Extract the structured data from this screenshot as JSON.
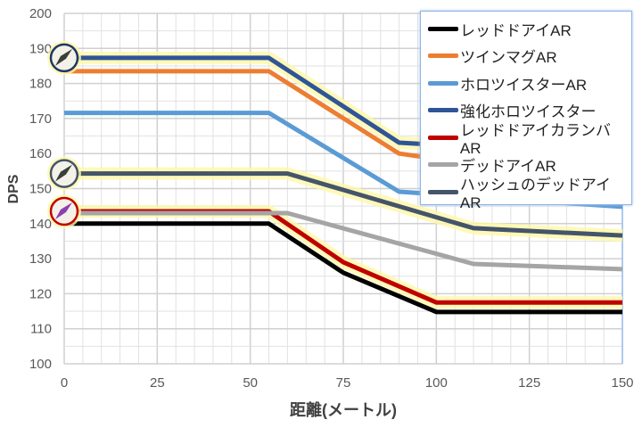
{
  "chart_data": {
    "type": "line",
    "title": "",
    "xlabel": "距離(メートル)",
    "ylabel": "DPS",
    "xlim": [
      0,
      150
    ],
    "ylim": [
      100,
      200
    ],
    "xticks": [
      0,
      25,
      50,
      75,
      100,
      125,
      150
    ],
    "yticks": [
      100,
      110,
      120,
      130,
      140,
      150,
      160,
      170,
      180,
      190,
      200
    ],
    "grid": true,
    "legend_position": "top-right",
    "series": [
      {
        "name": "レッドドアイAR",
        "color": "#000000",
        "glow": false,
        "points": [
          [
            0,
            140
          ],
          [
            55,
            140
          ],
          [
            75,
            126
          ],
          [
            100,
            114.8
          ],
          [
            150,
            114.8
          ]
        ]
      },
      {
        "name": "ツインマグAR",
        "color": "#ed7d31",
        "glow": false,
        "points": [
          [
            0,
            183.5
          ],
          [
            55,
            183.5
          ],
          [
            90,
            160
          ],
          [
            100,
            158.5
          ],
          [
            150,
            155
          ]
        ]
      },
      {
        "name": "ホロツイスターAR",
        "color": "#5b9bd5",
        "glow": false,
        "points": [
          [
            0,
            171.6
          ],
          [
            55,
            171.6
          ],
          [
            90,
            149.1
          ],
          [
            150,
            144.8
          ]
        ]
      },
      {
        "name": "強化ホロツイスター",
        "color": "#2f5597",
        "glow": true,
        "points": [
          [
            0,
            187.3
          ],
          [
            55,
            187.3
          ],
          [
            90,
            163.1
          ],
          [
            100,
            162.5
          ],
          [
            150,
            160
          ]
        ]
      },
      {
        "name": "レッドドアイカランバAR",
        "color": "#c00000",
        "glow": true,
        "points": [
          [
            0,
            143.5
          ],
          [
            55,
            143.5
          ],
          [
            75,
            129
          ],
          [
            100,
            117.5
          ],
          [
            150,
            117.5
          ]
        ]
      },
      {
        "name": "デッドアイAR",
        "color": "#a5a5a5",
        "glow": false,
        "points": [
          [
            0,
            143
          ],
          [
            60,
            143
          ],
          [
            110,
            128.5
          ],
          [
            150,
            127
          ]
        ]
      },
      {
        "name": "ハッシュのデッドアイAR",
        "color": "#44546a",
        "glow": true,
        "points": [
          [
            0,
            154.3
          ],
          [
            60,
            154.3
          ],
          [
            110,
            138.7
          ],
          [
            150,
            136.6
          ]
        ]
      }
    ],
    "markers": [
      {
        "name": "enhanced-holo-twister-icon",
        "y": 187.3,
        "ring": "#1f3864"
      },
      {
        "name": "hush-deadeye-icon",
        "y": 154.3,
        "ring": "#44546a"
      },
      {
        "name": "red-dot-carbine-icon",
        "y": 143.5,
        "ring": "#c00000"
      }
    ]
  }
}
